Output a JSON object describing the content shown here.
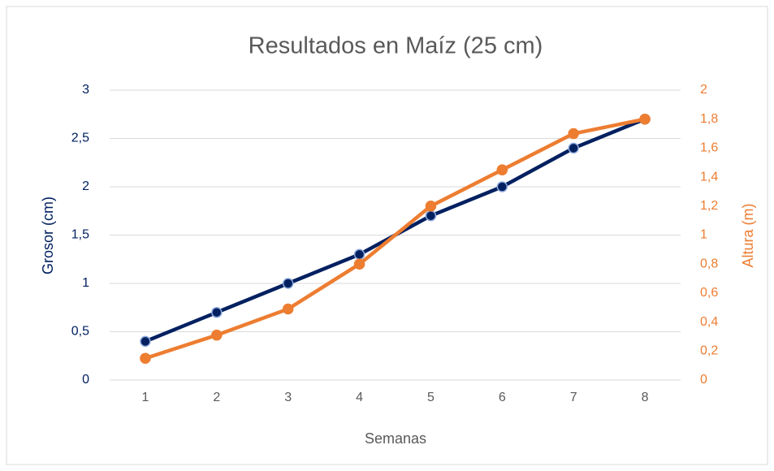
{
  "chart_data": {
    "type": "line",
    "title": "Resultados en Maíz (25 cm)",
    "x_label": "Semanas",
    "y_label": "Grosor (cm)",
    "y2_label": "Altura (m)",
    "categories": [
      "1",
      "2",
      "3",
      "4",
      "5",
      "6",
      "7",
      "8"
    ],
    "series": [
      {
        "color": "#002060",
        "values": [
          0.4,
          0.7,
          1.0,
          1.3,
          1.7,
          2.0,
          2.4,
          2.7
        ]
      },
      {
        "color": "#ed7d31",
        "axis": "y2",
        "values": [
          0.15,
          0.31,
          0.49,
          0.8,
          1.2,
          1.45,
          1.7,
          1.8
        ]
      }
    ],
    "ylim": [
      0,
      3
    ],
    "yticks": [
      0,
      {
        "value": 0.5,
        "label": "0,5"
      },
      1,
      {
        "value": 1.5,
        "label": "1,5"
      },
      2,
      {
        "value": 2.5,
        "label": "2,5"
      },
      3
    ],
    "y2lim": [
      0,
      2
    ],
    "y2ticks": [
      0,
      {
        "value": 0.2,
        "label": "0,2"
      },
      {
        "value": 0.4,
        "label": "0,4"
      },
      {
        "value": 0.6,
        "label": "0,6"
      },
      {
        "value": 0.8,
        "label": "0,8"
      },
      1,
      {
        "value": 1.2,
        "label": "1,2"
      },
      {
        "value": 1.4,
        "label": "1,4"
      },
      {
        "value": 1.6,
        "label": "1,6"
      },
      {
        "value": 1.8,
        "label": "1,8"
      },
      2
    ],
    "grid": true
  }
}
